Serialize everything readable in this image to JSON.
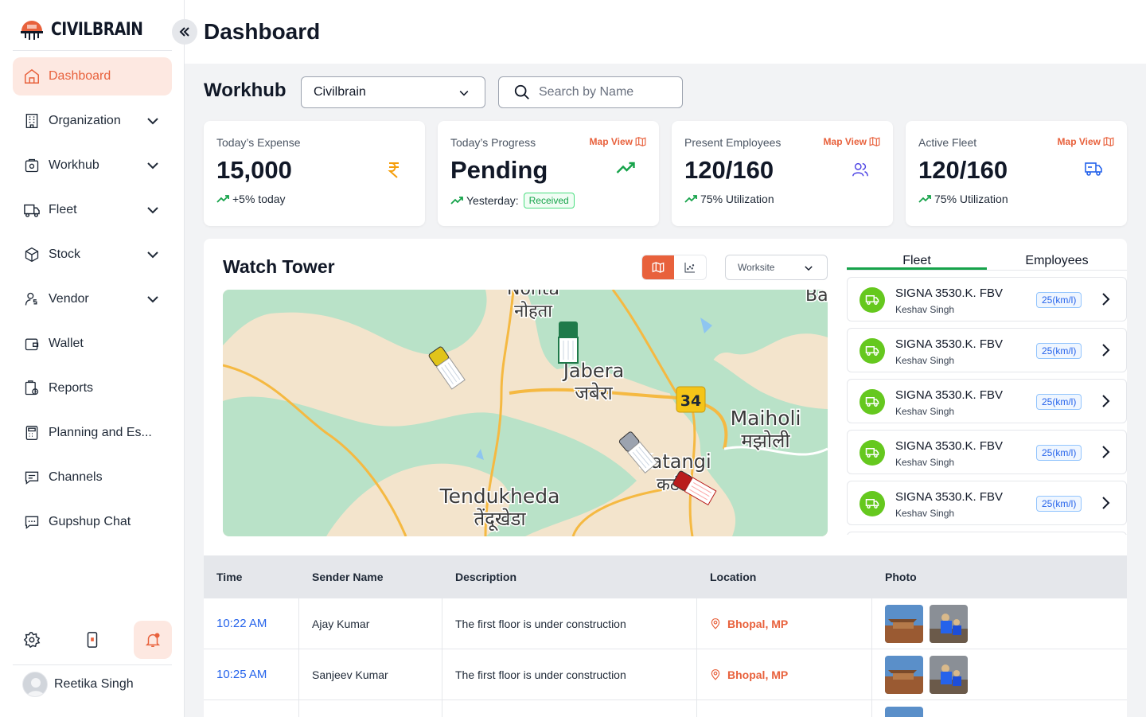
{
  "brand": {
    "name": "CIVILBRAIN"
  },
  "sidebar": {
    "items": [
      {
        "label": "Dashboard",
        "icon": "home-icon",
        "active": true
      },
      {
        "label": "Organization",
        "icon": "building-icon",
        "expandable": true
      },
      {
        "label": "Workhub",
        "icon": "workhub-icon",
        "expandable": true
      },
      {
        "label": "Fleet",
        "icon": "truck-icon",
        "expandable": true
      },
      {
        "label": "Stock",
        "icon": "box-icon",
        "expandable": true
      },
      {
        "label": "Vendor",
        "icon": "vendor-icon",
        "expandable": true
      },
      {
        "label": "Wallet",
        "icon": "wallet-icon"
      },
      {
        "label": "Reports",
        "icon": "reports-icon"
      },
      {
        "label": "Planning  and Es...",
        "icon": "calculator-icon"
      },
      {
        "label": "Channels",
        "icon": "chat-icon"
      },
      {
        "label": "Gupshup Chat",
        "icon": "chat-bubble-icon"
      }
    ],
    "bottom_icons": [
      "gear-icon",
      "mobile-icon",
      "bell-icon"
    ],
    "user": {
      "name": "Reetika Singh"
    }
  },
  "header": {
    "title": "Dashboard"
  },
  "workhub": {
    "label": "Workhub",
    "selected": "Civilbrain",
    "search_placeholder": "Search by Name"
  },
  "cards": [
    {
      "label": "Today’s Expense",
      "value": "15,000",
      "sub": "+5% today",
      "icon": "rupee-icon"
    },
    {
      "label": "Today’s Progress",
      "value": "Pending",
      "sub": "Yesterday:",
      "badge": "Received",
      "map_view": "Map View",
      "icon": "trend-up-icon"
    },
    {
      "label": "Present Employees",
      "value": "120/160",
      "sub": "75% Utilization",
      "map_view": "Map View",
      "icon": "users-icon"
    },
    {
      "label": "Active Fleet",
      "value": "120/160",
      "sub": "75% Utilization",
      "map_view": "Map View",
      "icon": "fleet-icon"
    }
  ],
  "watch_tower": {
    "title": "Watch Tower",
    "filter": "Worksite",
    "map_labels": [
      {
        "en": "Nohta",
        "hi": "नोहता"
      },
      {
        "en": "Jabera",
        "hi": "जबेरा"
      },
      {
        "en": "Maiholi",
        "hi": "मझोली"
      },
      {
        "en": "Tendukheda",
        "hi": "तेंदूखेडा"
      },
      {
        "en": "Katangi",
        "hi": "कटंगी"
      },
      {
        "en": "Ba",
        "hi": ""
      }
    ],
    "road_sign": "34",
    "tabs": [
      "Fleet",
      "Employees"
    ],
    "active_tab": "Fleet",
    "fleet": [
      {
        "name": "SIGNA 3530.K. FBV",
        "driver": "Keshav Singh",
        "efficiency": "25(km/l)"
      },
      {
        "name": "SIGNA 3530.K. FBV",
        "driver": "Keshav Singh",
        "efficiency": "25(km/l)"
      },
      {
        "name": "SIGNA 3530.K. FBV",
        "driver": "Keshav Singh",
        "efficiency": "25(km/l)"
      },
      {
        "name": "SIGNA 3530.K. FBV",
        "driver": "Keshav Singh",
        "efficiency": "25(km/l)"
      },
      {
        "name": "SIGNA 3530.K. FBV",
        "driver": "Keshav Singh",
        "efficiency": "25(km/l)"
      }
    ]
  },
  "activity_table": {
    "columns": [
      "Time",
      "Sender Name",
      "Description",
      "Location",
      "Photo"
    ],
    "rows": [
      {
        "time": "10:22 AM",
        "sender": "Ajay Kumar",
        "description": "The first floor is under construction",
        "location": "Bhopal, MP"
      },
      {
        "time": "10:25 AM",
        "sender": "Sanjeev Kumar",
        "description": "The first floor is under construction",
        "location": "Bhopal, MP"
      },
      {
        "time": "",
        "sender": "",
        "description": "",
        "location": ""
      }
    ]
  },
  "colors": {
    "accent": "#e8613c",
    "active_bg": "#fde8e1",
    "success": "#16a34a",
    "link": "#2563eb",
    "fleet_icon_bg": "#65c81e"
  }
}
